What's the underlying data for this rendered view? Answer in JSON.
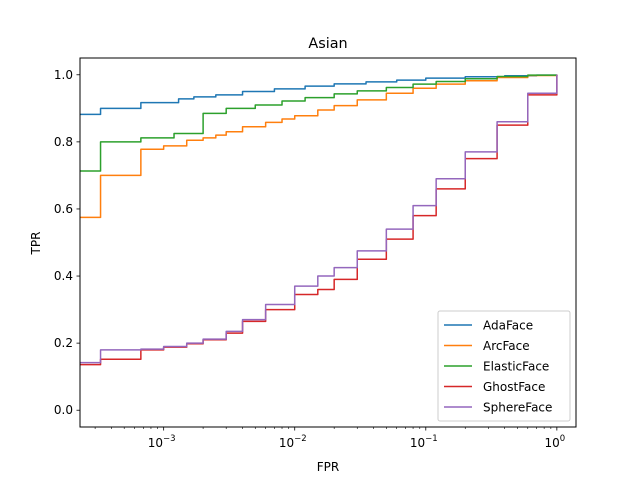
{
  "chart_data": {
    "type": "line",
    "title": "Asian",
    "xlabel": "FPR",
    "ylabel": "TPR",
    "xscale": "log",
    "xlim": [
      0.00023,
      1.4
    ],
    "ylim": [
      -0.05,
      1.05
    ],
    "x_ticks": [
      {
        "value": 0.001,
        "base": "10",
        "exp": "−3"
      },
      {
        "value": 0.01,
        "base": "10",
        "exp": "−2"
      },
      {
        "value": 0.1,
        "base": "10",
        "exp": "−1"
      },
      {
        "value": 1,
        "base": "10",
        "exp": "0"
      }
    ],
    "y_ticks": [
      {
        "value": 0.0,
        "label": "0.0"
      },
      {
        "value": 0.2,
        "label": "0.2"
      },
      {
        "value": 0.4,
        "label": "0.4"
      },
      {
        "value": 0.6,
        "label": "0.6"
      },
      {
        "value": 0.8,
        "label": "0.8"
      },
      {
        "value": 1.0,
        "label": "1.0"
      }
    ],
    "grid": false,
    "legend_position": "lower-right",
    "series": [
      {
        "name": "AdaFace",
        "color": "#1f77b4",
        "x": [
          0.00023,
          0.00033,
          0.00067,
          0.0013,
          0.0017,
          0.0025,
          0.004,
          0.007,
          0.012,
          0.02,
          0.035,
          0.06,
          0.1,
          0.2,
          0.4,
          0.7,
          1.0
        ],
        "y": [
          0.882,
          0.9,
          0.917,
          0.928,
          0.934,
          0.94,
          0.95,
          0.958,
          0.966,
          0.973,
          0.979,
          0.984,
          0.99,
          0.994,
          0.997,
          0.999,
          1.0
        ]
      },
      {
        "name": "ArcFace",
        "color": "#ff7f0e",
        "x": [
          0.00023,
          0.00033,
          0.00067,
          0.001,
          0.0015,
          0.002,
          0.0025,
          0.003,
          0.004,
          0.006,
          0.008,
          0.01,
          0.015,
          0.02,
          0.03,
          0.05,
          0.08,
          0.12,
          0.2,
          0.35,
          0.6,
          1.0
        ],
        "y": [
          0.575,
          0.7,
          0.778,
          0.788,
          0.805,
          0.812,
          0.82,
          0.83,
          0.845,
          0.858,
          0.868,
          0.878,
          0.895,
          0.908,
          0.925,
          0.945,
          0.96,
          0.972,
          0.982,
          0.992,
          0.998,
          1.0
        ]
      },
      {
        "name": "ElasticFace",
        "color": "#2ca02c",
        "x": [
          0.00023,
          0.00033,
          0.00067,
          0.0012,
          0.002,
          0.003,
          0.005,
          0.008,
          0.012,
          0.02,
          0.03,
          0.05,
          0.08,
          0.12,
          0.2,
          0.35,
          0.6,
          1.0
        ],
        "y": [
          0.713,
          0.8,
          0.812,
          0.825,
          0.885,
          0.9,
          0.91,
          0.922,
          0.932,
          0.943,
          0.952,
          0.962,
          0.972,
          0.98,
          0.988,
          0.995,
          0.999,
          1.0
        ]
      },
      {
        "name": "GhostFace",
        "color": "#d62728",
        "x": [
          0.00023,
          0.00033,
          0.00067,
          0.001,
          0.0015,
          0.002,
          0.003,
          0.004,
          0.006,
          0.01,
          0.015,
          0.02,
          0.03,
          0.05,
          0.08,
          0.12,
          0.2,
          0.35,
          0.6,
          1.0
        ],
        "y": [
          0.136,
          0.152,
          0.18,
          0.188,
          0.198,
          0.21,
          0.23,
          0.265,
          0.3,
          0.345,
          0.36,
          0.39,
          0.45,
          0.51,
          0.58,
          0.66,
          0.75,
          0.85,
          0.94,
          1.0
        ]
      },
      {
        "name": "SphereFace",
        "color": "#9467bd",
        "x": [
          0.00023,
          0.00033,
          0.00067,
          0.001,
          0.0015,
          0.002,
          0.003,
          0.004,
          0.006,
          0.01,
          0.015,
          0.02,
          0.03,
          0.05,
          0.08,
          0.12,
          0.2,
          0.35,
          0.6,
          1.0
        ],
        "y": [
          0.142,
          0.18,
          0.182,
          0.19,
          0.2,
          0.212,
          0.235,
          0.27,
          0.315,
          0.37,
          0.4,
          0.425,
          0.475,
          0.54,
          0.61,
          0.69,
          0.77,
          0.86,
          0.945,
          1.0
        ]
      }
    ]
  }
}
